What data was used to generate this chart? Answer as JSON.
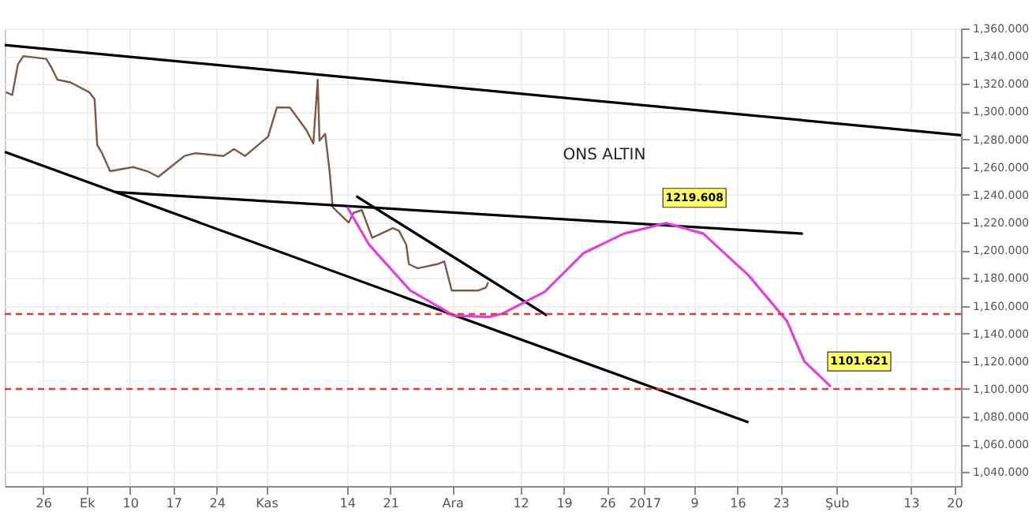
{
  "chart_data": {
    "type": "line",
    "title": "ONS ALTIN",
    "xlim": [
      "2016-09-19T19:00",
      "2017-02-21T02:00"
    ],
    "ylim": [
      1030,
      1360
    ],
    "xticks": [
      {
        "value": "2016-09-26",
        "label": "26"
      },
      {
        "value": "2016-10-03",
        "label": "Ek"
      },
      {
        "value": "2016-10-10",
        "label": "10"
      },
      {
        "value": "2016-10-17",
        "label": "17"
      },
      {
        "value": "2016-10-24",
        "label": "24"
      },
      {
        "value": "2016-11-01",
        "label": "Kas"
      },
      {
        "value": "2016-11-14",
        "label": "14"
      },
      {
        "value": "2016-11-21",
        "label": "21"
      },
      {
        "value": "2016-12-01",
        "label": "Ara"
      },
      {
        "value": "2016-12-12",
        "label": "12"
      },
      {
        "value": "2016-12-19",
        "label": "19"
      },
      {
        "value": "2016-12-26",
        "label": "26"
      },
      {
        "value": "2017-01-01",
        "label": "2017"
      },
      {
        "value": "2017-01-09",
        "label": "9"
      },
      {
        "value": "2017-01-16",
        "label": "16"
      },
      {
        "value": "2017-01-23",
        "label": "23"
      },
      {
        "value": "2017-02-01",
        "label": "Şub"
      },
      {
        "value": "2017-02-13",
        "label": "13"
      },
      {
        "value": "2017-02-20",
        "label": "20"
      }
    ],
    "yticks": [
      {
        "value": 1040,
        "label": "1,040.000"
      },
      {
        "value": 1060,
        "label": "1,060.000"
      },
      {
        "value": 1080,
        "label": "1,080.000"
      },
      {
        "value": 1100,
        "label": "1,100.000"
      },
      {
        "value": 1120,
        "label": "1,120.000"
      },
      {
        "value": 1140,
        "label": "1,140.000"
      },
      {
        "value": 1160,
        "label": "1,160.000"
      },
      {
        "value": 1180,
        "label": "1,180.000"
      },
      {
        "value": 1200,
        "label": "1,200.000"
      },
      {
        "value": 1220,
        "label": "1,220.000"
      },
      {
        "value": 1240,
        "label": "1,240.000"
      },
      {
        "value": 1260,
        "label": "1,260.000"
      },
      {
        "value": 1280,
        "label": "1,280.000"
      },
      {
        "value": 1300,
        "label": "1,300.000"
      },
      {
        "value": 1320,
        "label": "1,320.000"
      },
      {
        "value": 1340,
        "label": "1,340.000"
      },
      {
        "value": 1360,
        "label": "1,360.000"
      }
    ],
    "grid": true,
    "line_style": "solid",
    "marker": "none",
    "series": [
      {
        "color": "#7a5a44",
        "x": [
          "2016-09-20T00:00",
          "2016-09-21T00:00",
          "2016-09-21T22:00",
          "2016-09-22T19:00",
          "2016-09-26T12:00",
          "2016-09-27T10:00",
          "2016-09-28T07:00",
          "2016-09-30T10:00",
          "2016-10-03T10:00",
          "2016-10-04T07:00",
          "2016-10-04T17:00",
          "2016-10-05T12:00",
          "2016-10-06T19:00",
          "2016-10-10T12:00",
          "2016-10-12T19:00",
          "2016-10-14T14:00",
          "2016-10-18T19:00",
          "2016-10-20T14:00",
          "2016-10-25T02:00",
          "2016-10-26T19:00",
          "2016-10-28T14:00",
          "2016-11-01T07:00",
          "2016-11-02T17:00",
          "2016-11-04T19:00",
          "2016-11-07T10:00",
          "2016-11-08T14:00",
          "2016-11-09T07:00",
          "2016-11-09T14:00",
          "2016-11-10T12:00",
          "2016-11-11T05:00",
          "2016-11-11T17:00",
          "2016-11-14T07:00",
          "2016-11-15T02:00",
          "2016-11-16T10:00",
          "2016-11-18T02:00",
          "2016-11-21T10:00",
          "2016-11-22T10:00",
          "2016-11-23T14:00",
          "2016-11-24T00:00",
          "2016-11-25T10:00",
          "2016-11-28T14:00",
          "2016-11-29T17:00",
          "2016-11-30T22:00",
          "2016-12-01T02:00",
          "2016-12-05T05:00",
          "2016-12-06T10:00",
          "2016-12-06T19:00"
        ],
        "values": [
          1314,
          1312,
          1334,
          1340,
          1338,
          1331,
          1323,
          1321,
          1314,
          1309,
          1276,
          1270,
          1257,
          1260,
          1257,
          1253,
          1268,
          1270,
          1268,
          1273,
          1268,
          1282,
          1303,
          1303,
          1287,
          1277,
          1323,
          1279,
          1284,
          1257,
          1231,
          1220,
          1227,
          1229,
          1209,
          1216,
          1214,
          1204,
          1190,
          1187,
          1190,
          1192,
          1171,
          1171,
          1171,
          1173,
          1177
        ]
      },
      {
        "color": "#000000",
        "x": [
          "2016-09-19T19:00",
          "2017-02-21T02:00"
        ],
        "values": [
          1348,
          1283
        ]
      },
      {
        "color": "#000000",
        "x": [
          "2016-09-19T19:00",
          "2017-01-17T19:00"
        ],
        "values": [
          1271,
          1076
        ]
      },
      {
        "color": "#000000",
        "x": [
          "2016-10-07T14:00",
          "2017-01-26T14:00"
        ],
        "values": [
          1242,
          1212
        ]
      },
      {
        "color": "#000000",
        "x": [
          "2016-11-15T12:00",
          "2016-12-16T07:00"
        ],
        "values": [
          1239,
          1153
        ]
      },
      {
        "color": "#e040e0",
        "x": [
          "2016-11-14T02:00",
          "2016-11-17T14:00",
          "2016-11-24T05:00",
          "2016-11-29T17:00",
          "2016-12-01T02:00",
          "2016-12-06T22:00",
          "2016-12-08T22:00",
          "2016-12-15T22:00",
          "2016-12-22T05:00",
          "2016-12-28T17:00",
          "2017-01-04T12:00",
          "2017-01-10T12:00",
          "2017-01-17T19:00",
          "2017-01-24T00:00",
          "2017-01-26T19:00",
          "2017-01-31T02:00"
        ],
        "values": [
          1231,
          1204,
          1171,
          1157,
          1153,
          1152,
          1154,
          1170,
          1198,
          1212,
          1219.608,
          1212,
          1182,
          1149,
          1120,
          1101.621
        ]
      }
    ],
    "ref_lines": [
      {
        "axis": "y",
        "value": 1154,
        "color": "#e53935",
        "line_style": "dashed"
      },
      {
        "axis": "y",
        "value": 1100,
        "color": "#e53935",
        "line_style": "dashed"
      }
    ],
    "annotations": [
      {
        "text": "1219.608",
        "x": "2017-01-04T12:00",
        "y": 1219.608
      },
      {
        "text": "1101.621",
        "x": "2017-01-31T02:00",
        "y": 1101.621
      }
    ]
  }
}
